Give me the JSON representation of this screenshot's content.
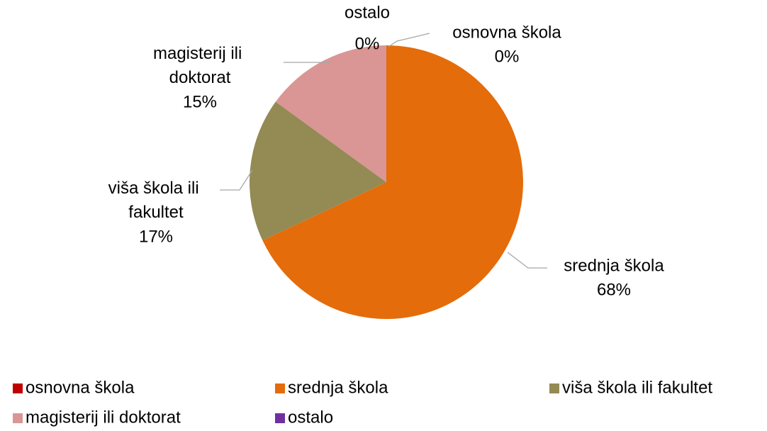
{
  "chart_data": {
    "type": "pie",
    "categories": [
      "osnovna škola",
      "srednja škola",
      "viša škola ili fakultet",
      "magisterij ili doktorat",
      "ostalo"
    ],
    "values": [
      0,
      68,
      17,
      15,
      0
    ],
    "value_labels": [
      "0%",
      "68%",
      "17%",
      "15%",
      "0%"
    ],
    "colors": [
      "#c00000",
      "#e46c0a",
      "#948a54",
      "#d99694",
      "#7030a0"
    ],
    "legend": "bottom"
  }
}
